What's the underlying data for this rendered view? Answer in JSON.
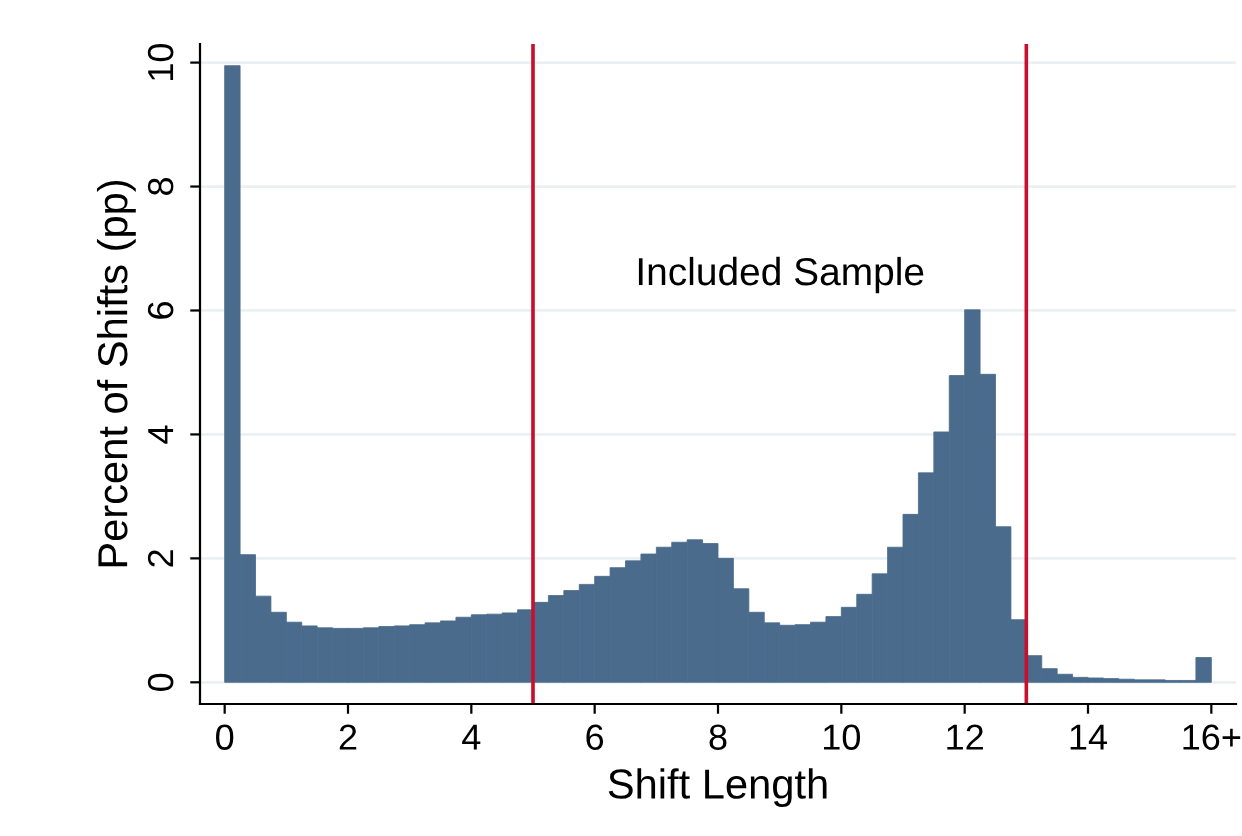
{
  "chart_data": {
    "type": "histogram",
    "xlabel": "Shift Length",
    "ylabel": "Percent of Shifts (pp)",
    "bins": [
      0,
      0.25,
      0.5,
      0.75,
      1,
      1.25,
      1.5,
      1.75,
      2,
      2.25,
      2.5,
      2.75,
      3,
      3.25,
      3.5,
      3.75,
      4,
      4.25,
      4.5,
      4.75,
      5,
      5.25,
      5.5,
      5.75,
      6,
      6.25,
      6.5,
      6.75,
      7,
      7.25,
      7.5,
      7.75,
      8,
      8.25,
      8.5,
      8.75,
      9,
      9.25,
      9.5,
      9.75,
      10,
      10.25,
      10.5,
      10.75,
      11,
      11.25,
      11.5,
      11.75,
      12,
      12.25,
      12.5,
      12.75,
      13,
      13.25,
      13.5,
      13.75,
      14,
      14.25,
      14.5,
      14.75,
      15,
      15.25,
      15.5,
      15.75,
      16
    ],
    "values": [
      9.95,
      2.06,
      1.39,
      1.13,
      0.97,
      0.91,
      0.88,
      0.87,
      0.87,
      0.88,
      0.9,
      0.91,
      0.93,
      0.96,
      0.99,
      1.05,
      1.09,
      1.1,
      1.12,
      1.17,
      1.29,
      1.4,
      1.48,
      1.58,
      1.71,
      1.85,
      1.96,
      2.07,
      2.18,
      2.26,
      2.3,
      2.24,
      2.0,
      1.51,
      1.13,
      0.96,
      0.92,
      0.93,
      0.97,
      1.06,
      1.21,
      1.42,
      1.75,
      2.18,
      2.71,
      3.38,
      4.04,
      4.95,
      6.01,
      4.97,
      2.51,
      1.01,
      0.43,
      0.22,
      0.13,
      0.08,
      0.07,
      0.06,
      0.05,
      0.04,
      0.04,
      0.03,
      0.03,
      0.4
    ],
    "color": "#4a6b8c",
    "xlim": [
      -0.4,
      16.4
    ],
    "ylim": [
      -0.35,
      10.3
    ],
    "xticks": [
      0,
      2,
      4,
      6,
      8,
      10,
      12,
      14,
      {
        "value": 16,
        "label": "16+"
      }
    ],
    "yticks": [
      0,
      2,
      4,
      6,
      8,
      10
    ],
    "grid": "y",
    "ref_lines": [
      {
        "axis": "x",
        "value": 5,
        "color": "#c8102e"
      },
      {
        "axis": "x",
        "value": 13,
        "color": "#c8102e"
      }
    ],
    "annotations": [
      "Included Sample"
    ]
  }
}
